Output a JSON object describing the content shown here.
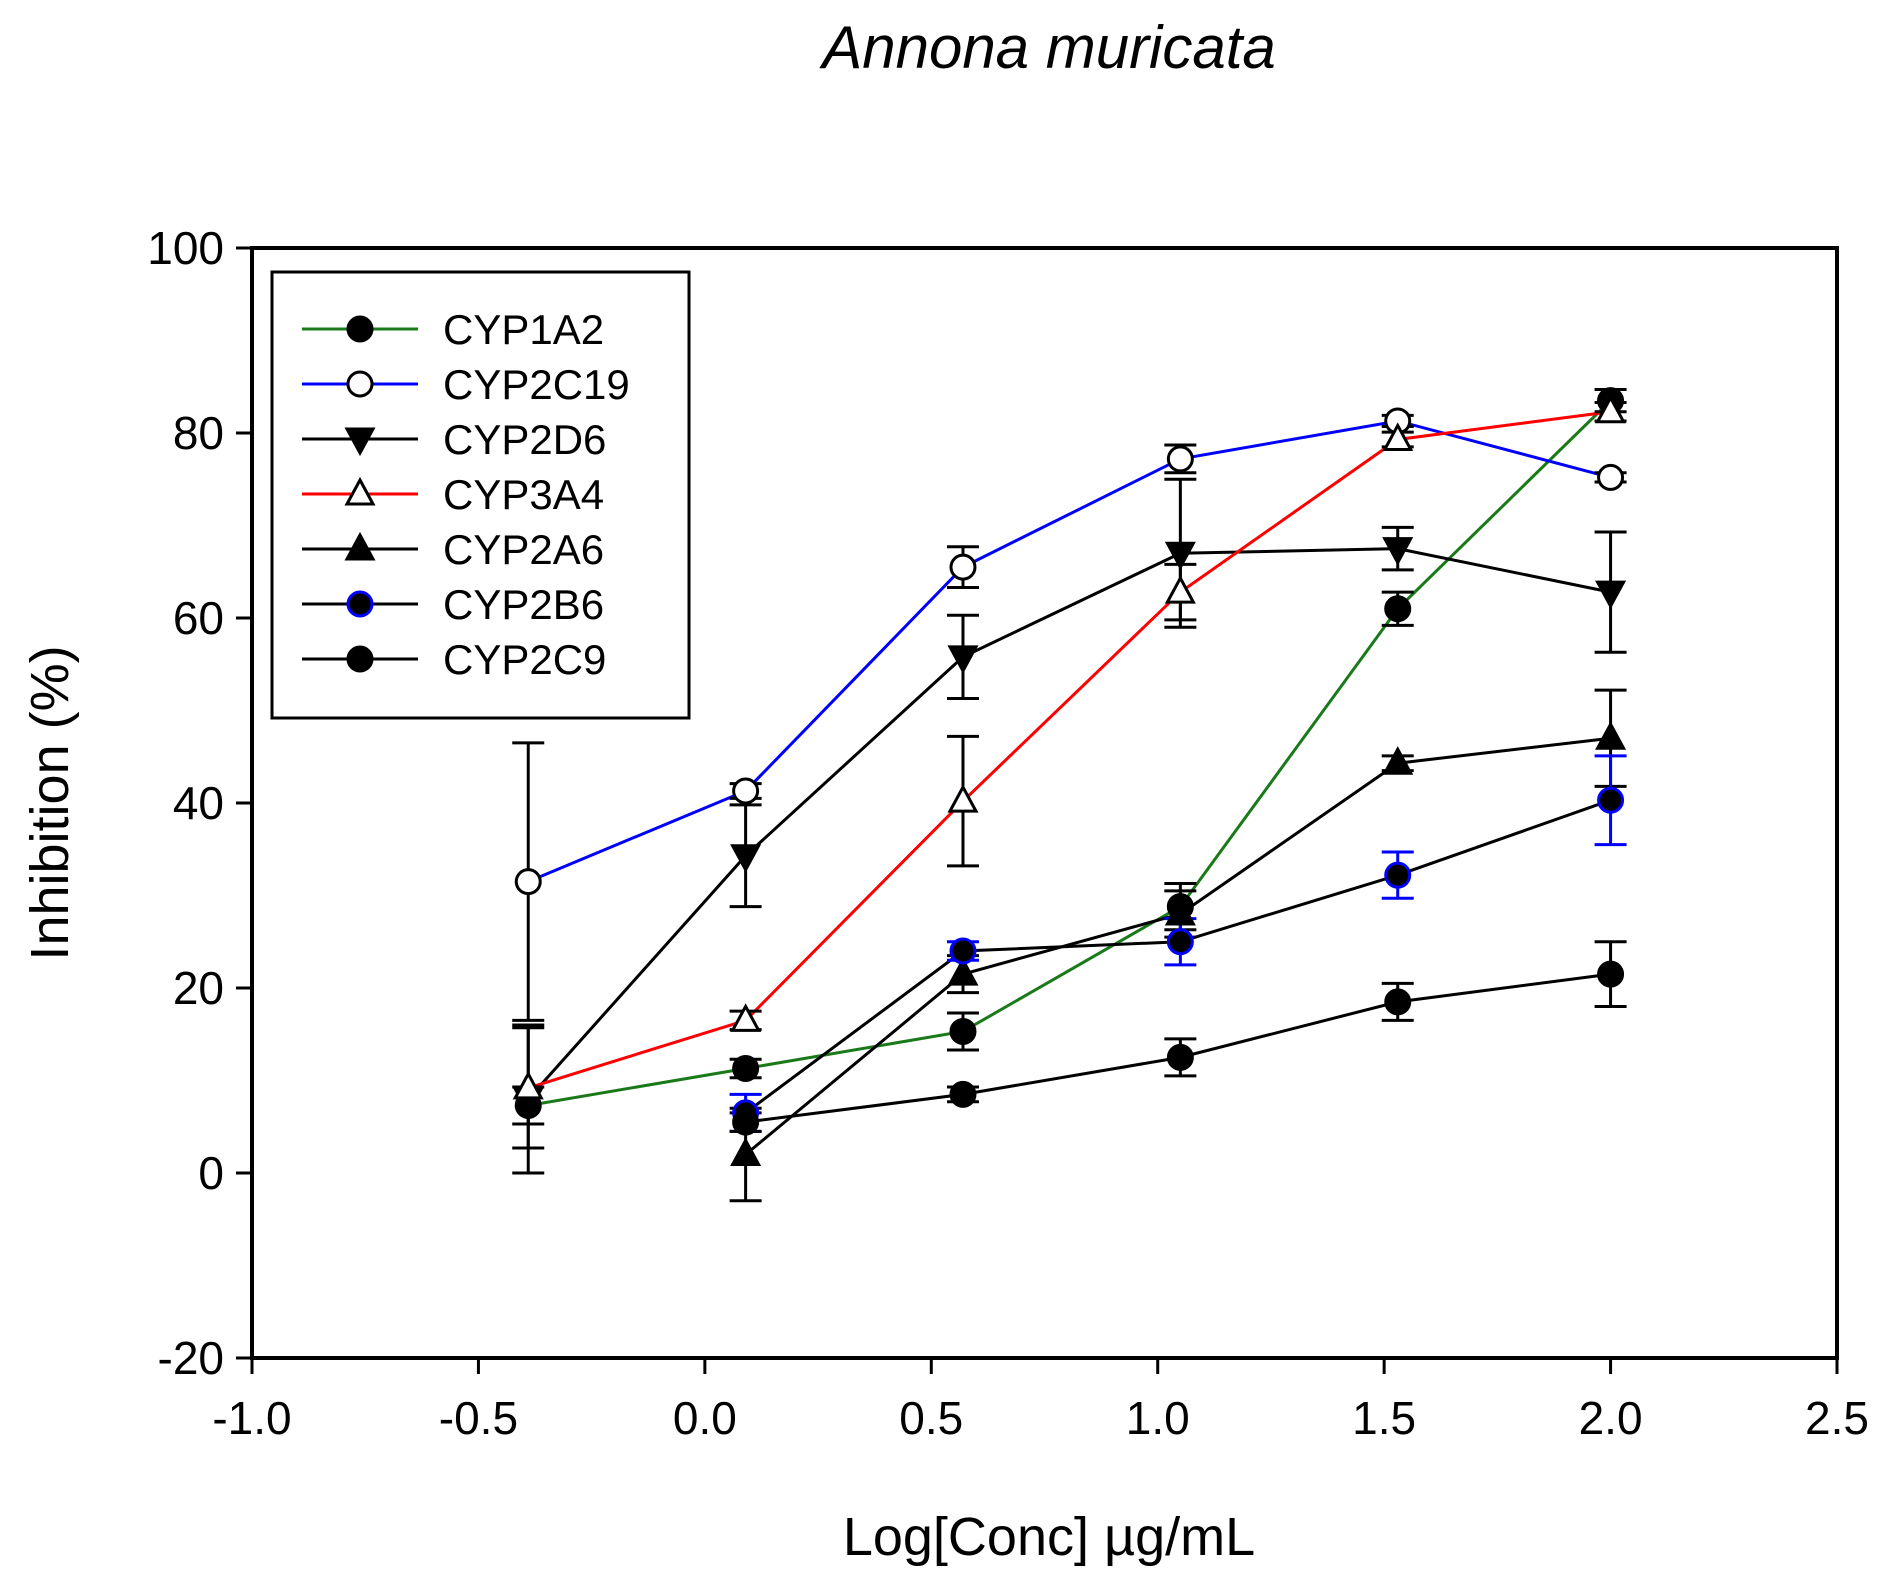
{
  "chart_data": {
    "type": "line",
    "title": "Annona muricata",
    "xlabel": "Log[Conc] µg/mL",
    "ylabel": "Inhibition (%)",
    "xlim": [
      -1.0,
      2.5
    ],
    "ylim": [
      -20,
      100
    ],
    "xticks": [
      -1.0,
      -0.5,
      0.0,
      0.5,
      1.0,
      1.5,
      2.0,
      2.5
    ],
    "xtick_labels": [
      "-1.0",
      "-0.5",
      "0.0",
      "0.5",
      "1.0",
      "1.5",
      "2.0",
      "2.5"
    ],
    "yticks": [
      -20,
      0,
      20,
      40,
      60,
      80,
      100
    ],
    "ytick_labels": [
      "-20",
      "0",
      "20",
      "40",
      "60",
      "80",
      "100"
    ],
    "grid": false,
    "legend_position": "top-left",
    "series": [
      {
        "name": "CYP1A2",
        "line_color": "#1a7a1a",
        "marker": "circle",
        "marker_fill": "#000000",
        "marker_stroke": "#000000",
        "error_color": "#000000",
        "x": [
          -0.39,
          0.09,
          0.57,
          1.05,
          1.53,
          2.0
        ],
        "y": [
          7.3,
          11.3,
          15.3,
          28.8,
          61.0,
          83.5
        ],
        "err": [
          2.0,
          1.0,
          2.0,
          2.5,
          1.8,
          1.2
        ]
      },
      {
        "name": "CYP2C19",
        "line_color": "#0000ff",
        "marker": "circle",
        "marker_fill": "#ffffff",
        "marker_stroke": "#000000",
        "error_color": "#000000",
        "x": [
          -0.39,
          0.09,
          0.57,
          1.05,
          1.53,
          2.0
        ],
        "y": [
          31.5,
          41.3,
          65.5,
          77.2,
          81.3,
          75.2
        ],
        "err": [
          15.0,
          0.8,
          2.2,
          1.5,
          0.6,
          0.5
        ]
      },
      {
        "name": "CYP2D6",
        "line_color": "#000000",
        "marker": "triangle-down",
        "marker_fill": "#000000",
        "marker_stroke": "#000000",
        "error_color": "#000000",
        "x": [
          -0.39,
          0.09,
          0.57,
          1.05,
          1.53,
          2.0
        ],
        "y": [
          8.0,
          34.3,
          55.8,
          67.0,
          67.5,
          62.8
        ],
        "err": [
          8.0,
          5.5,
          4.5,
          8.0,
          2.3,
          6.5
        ]
      },
      {
        "name": "CYP3A4",
        "line_color": "#ff0000",
        "marker": "triangle-up",
        "marker_fill": "#ffffff",
        "marker_stroke": "#000000",
        "error_color": "#000000",
        "x": [
          -0.39,
          0.09,
          0.57,
          1.05,
          1.53,
          2.0
        ],
        "y": [
          9.2,
          16.5,
          40.2,
          62.8,
          79.3,
          82.3
        ],
        "err": [
          6.5,
          1.0,
          7.0,
          3.0,
          0.8,
          1.0
        ]
      },
      {
        "name": "CYP2A6",
        "line_color": "#000000",
        "marker": "triangle-up",
        "marker_fill": "#000000",
        "marker_stroke": "#000000",
        "error_color": "#000000",
        "x": [
          0.09,
          0.57,
          1.05,
          1.53,
          2.0
        ],
        "y": [
          2.0,
          21.5,
          28.0,
          44.3,
          47.0
        ],
        "err": [
          5.0,
          2.0,
          2.5,
          0.8,
          5.2
        ]
      },
      {
        "name": "CYP2B6",
        "line_color": "#000000",
        "marker": "circle",
        "marker_fill": "#000000",
        "marker_stroke": "#0000ff",
        "error_color": "#0000ff",
        "x": [
          0.09,
          0.57,
          1.05,
          1.53,
          2.0
        ],
        "y": [
          6.5,
          24.0,
          25.0,
          32.2,
          40.3
        ],
        "err": [
          2.0,
          1.0,
          2.5,
          2.5,
          4.8
        ]
      },
      {
        "name": "CYP2C9",
        "line_color": "#000000",
        "marker": "circle",
        "marker_fill": "#000000",
        "marker_stroke": "#000000",
        "error_color": "#000000",
        "x": [
          0.09,
          0.57,
          1.05,
          1.53,
          2.0
        ],
        "y": [
          5.5,
          8.5,
          12.5,
          18.5,
          21.5
        ],
        "err": [
          1.0,
          0.8,
          2.0,
          2.0,
          3.5
        ]
      }
    ]
  }
}
